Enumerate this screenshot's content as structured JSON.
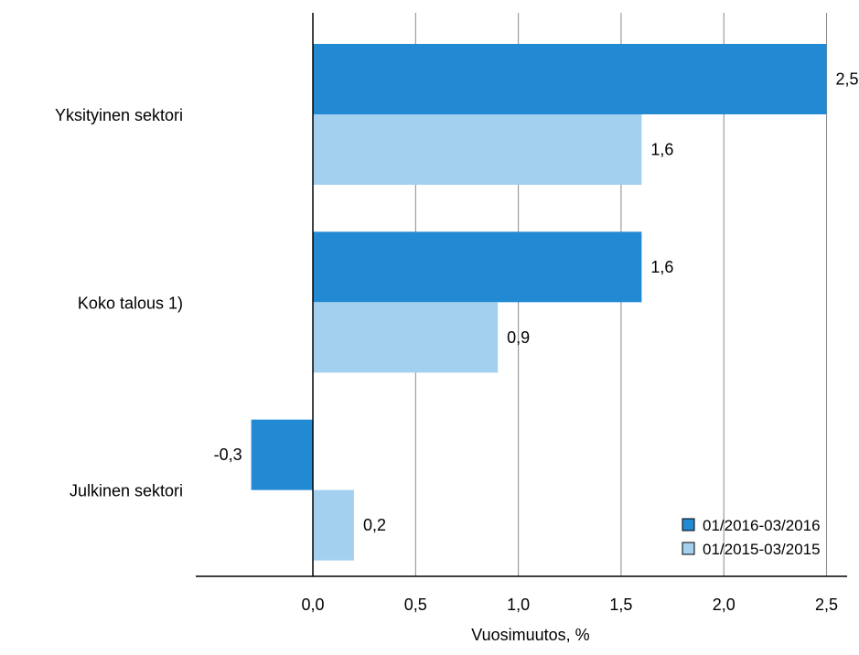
{
  "chart_data": {
    "type": "bar",
    "orientation": "horizontal",
    "categories": [
      "Yksityinen sektori",
      "Koko talous 1)",
      "Julkinen sektori"
    ],
    "series": [
      {
        "name": "01/2016-03/2016",
        "values": [
          2.5,
          1.6,
          -0.3
        ],
        "color": "#2289d3"
      },
      {
        "name": "01/2015-03/2015",
        "values": [
          1.6,
          0.9,
          0.2
        ],
        "color": "#a4d0ef"
      }
    ],
    "data_labels": [
      [
        "2,5",
        "1,6",
        "-0,3"
      ],
      [
        "1,6",
        "0,9",
        "0,2"
      ]
    ],
    "xlabel": "Vuosimuutos, %",
    "ylabel": "",
    "xlim": [
      -0.57,
      2.6
    ],
    "xticks": [
      0.0,
      0.5,
      1.0,
      1.5,
      2.0,
      2.5
    ],
    "xtick_labels": [
      "0,0",
      "0,5",
      "1,0",
      "1,5",
      "2,0",
      "2,5"
    ],
    "grid": "vertical",
    "legend_position": "bottom-right"
  }
}
